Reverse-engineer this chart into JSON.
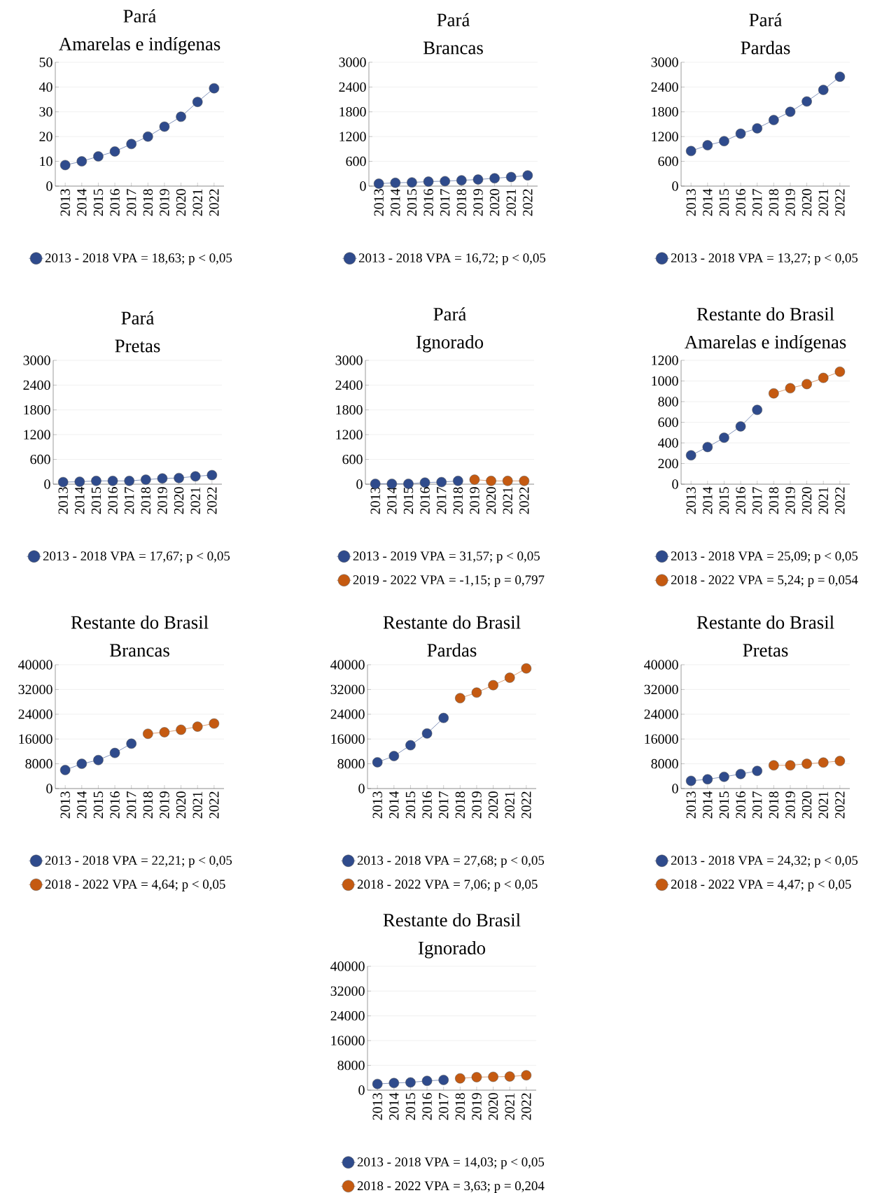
{
  "chart_data": [
    {
      "type": "line",
      "title": "Pará",
      "subtitle": "Amarelas e indígenas",
      "categories": [
        "2013",
        "2014",
        "2015",
        "2016",
        "2017",
        "2018",
        "2019",
        "2020",
        "2021",
        "2022"
      ],
      "ylim": [
        0,
        50
      ],
      "yticks": [
        0,
        10,
        20,
        30,
        40,
        50
      ],
      "grid": "y",
      "legend": "bottom",
      "marker": "circle",
      "series": [
        {
          "name": "2013 - 2018 VPA = 18,63; p < 0,05",
          "color": "#2f4b8c",
          "values": [
            8.5,
            10,
            12,
            14,
            17,
            20,
            24,
            28,
            34,
            39.5
          ]
        }
      ]
    },
    {
      "type": "line",
      "title": "Pará",
      "subtitle": "Brancas",
      "categories": [
        "2013",
        "2014",
        "2015",
        "2016",
        "2017",
        "2018",
        "2019",
        "2020",
        "2021",
        "2022"
      ],
      "ylim": [
        0,
        3000
      ],
      "yticks": [
        0,
        600,
        1200,
        1800,
        2400,
        3000
      ],
      "grid": "y",
      "legend": "bottom",
      "marker": "circle",
      "series": [
        {
          "name": "2013 - 2018 VPA = 16,72; p < 0,05",
          "color": "#2f4b8c",
          "values": [
            60,
            80,
            90,
            110,
            120,
            140,
            160,
            190,
            220,
            260
          ]
        }
      ]
    },
    {
      "type": "line",
      "title": "Pará",
      "subtitle": "Pardas",
      "categories": [
        "2013",
        "2014",
        "2015",
        "2016",
        "2017",
        "2018",
        "2019",
        "2020",
        "2021",
        "2022"
      ],
      "ylim": [
        0,
        3000
      ],
      "yticks": [
        0,
        600,
        1200,
        1800,
        2400,
        3000
      ],
      "grid": "y",
      "legend": "bottom",
      "marker": "circle",
      "series": [
        {
          "name": "2013 - 2018 VPA = 13,27; p < 0,05",
          "color": "#2f4b8c",
          "values": [
            850,
            990,
            1090,
            1270,
            1400,
            1600,
            1800,
            2050,
            2330,
            2650
          ]
        }
      ]
    },
    {
      "type": "line",
      "title": "Pará",
      "subtitle": "Pretas",
      "categories": [
        "2013",
        "2014",
        "2015",
        "2016",
        "2017",
        "2018",
        "2019",
        "2020",
        "2021",
        "2022"
      ],
      "ylim": [
        0,
        3000
      ],
      "yticks": [
        0,
        600,
        1200,
        1800,
        2400,
        3000
      ],
      "grid": "y",
      "legend": "bottom",
      "marker": "circle",
      "series": [
        {
          "name": "2013 - 2018 VPA = 17,67; p < 0,05",
          "color": "#2f4b8c",
          "values": [
            50,
            60,
            80,
            80,
            80,
            110,
            140,
            150,
            190,
            220
          ]
        }
      ]
    },
    {
      "type": "line",
      "title": "Pará",
      "subtitle": "Ignorado",
      "categories": [
        "2013",
        "2014",
        "2015",
        "2016",
        "2017",
        "2018",
        "2019",
        "2020",
        "2021",
        "2022"
      ],
      "ylim": [
        0,
        3000
      ],
      "yticks": [
        0,
        600,
        1200,
        1800,
        2400,
        3000
      ],
      "grid": "y",
      "legend": "bottom",
      "marker": "circle",
      "series": [
        {
          "name": "2013 - 2019 VPA = 31,57; p < 0,05",
          "color": "#2f4b8c",
          "values": [
            10,
            10,
            10,
            40,
            50,
            80,
            null,
            null,
            null,
            null
          ]
        },
        {
          "name": "2019 - 2022 VPA = -1,15; p = 0,797",
          "color": "#c55a11",
          "values": [
            null,
            null,
            null,
            null,
            null,
            null,
            110,
            80,
            80,
            80
          ]
        }
      ]
    },
    {
      "type": "line",
      "title": "Restante do Brasil",
      "subtitle": "Amarelas e indígenas",
      "categories": [
        "2013",
        "2014",
        "2015",
        "2016",
        "2017",
        "2018",
        "2019",
        "2020",
        "2021",
        "2022"
      ],
      "ylim": [
        0,
        1200
      ],
      "yticks": [
        0,
        200,
        400,
        600,
        800,
        1000,
        1200
      ],
      "grid": "y",
      "legend": "bottom",
      "marker": "circle",
      "series": [
        {
          "name": "2013 - 2018 VPA = 25,09; p < 0,05",
          "color": "#2f4b8c",
          "values": [
            280,
            360,
            450,
            560,
            720,
            null,
            null,
            null,
            null,
            null
          ]
        },
        {
          "name": "2018 - 2022 VPA = 5,24; p = 0,054",
          "color": "#c55a11",
          "values": [
            null,
            null,
            null,
            null,
            null,
            880,
            930,
            970,
            1030,
            1090
          ]
        }
      ]
    },
    {
      "type": "line",
      "title": "Restante do Brasil",
      "subtitle": "Brancas",
      "categories": [
        "2013",
        "2014",
        "2015",
        "2016",
        "2017",
        "2018",
        "2019",
        "2020",
        "2021",
        "2022"
      ],
      "ylim": [
        0,
        40000
      ],
      "yticks": [
        0,
        8000,
        16000,
        24000,
        32000,
        40000
      ],
      "grid": "y",
      "legend": "bottom",
      "marker": "circle",
      "series": [
        {
          "name": "2013 - 2018 VPA = 22,21; p < 0,05",
          "color": "#2f4b8c",
          "values": [
            6000,
            8000,
            9200,
            11500,
            14500,
            null,
            null,
            null,
            null,
            null
          ]
        },
        {
          "name": "2018 - 2022 VPA = 4,64; p < 0,05",
          "color": "#c55a11",
          "values": [
            null,
            null,
            null,
            null,
            null,
            17700,
            18200,
            19000,
            20000,
            21000
          ]
        }
      ]
    },
    {
      "type": "line",
      "title": "Restante do Brasil",
      "subtitle": "Pardas",
      "categories": [
        "2013",
        "2014",
        "2015",
        "2016",
        "2017",
        "2018",
        "2019",
        "2020",
        "2021",
        "2022"
      ],
      "ylim": [
        0,
        40000
      ],
      "yticks": [
        0,
        8000,
        16000,
        24000,
        32000,
        40000
      ],
      "grid": "y",
      "legend": "bottom",
      "marker": "circle",
      "series": [
        {
          "name": "2013 - 2018 VPA = 27,68; p < 0,05",
          "color": "#2f4b8c",
          "values": [
            8500,
            10500,
            14000,
            17800,
            22800,
            null,
            null,
            null,
            null,
            null
          ]
        },
        {
          "name": "2018 - 2022 VPA = 7,06; p < 0,05",
          "color": "#c55a11",
          "values": [
            null,
            null,
            null,
            null,
            null,
            29200,
            31000,
            33400,
            35800,
            38800
          ]
        }
      ]
    },
    {
      "type": "line",
      "title": "Restante do Brasil",
      "subtitle": "Pretas",
      "categories": [
        "2013",
        "2014",
        "2015",
        "2016",
        "2017",
        "2018",
        "2019",
        "2020",
        "2021",
        "2022"
      ],
      "ylim": [
        0,
        40000
      ],
      "yticks": [
        0,
        8000,
        16000,
        24000,
        32000,
        40000
      ],
      "grid": "y",
      "legend": "bottom",
      "marker": "circle",
      "series": [
        {
          "name": "2013 - 2018 VPA = 24,32; p < 0,05",
          "color": "#2f4b8c",
          "values": [
            2500,
            3000,
            3800,
            4700,
            5700,
            null,
            null,
            null,
            null,
            null
          ]
        },
        {
          "name": "2018 - 2022 VPA = 4,47; p < 0,05",
          "color": "#c55a11",
          "values": [
            null,
            null,
            null,
            null,
            null,
            7500,
            7500,
            8000,
            8400,
            8900
          ]
        }
      ]
    },
    {
      "type": "line",
      "title": "Restante do Brasil",
      "subtitle": "Ignorado",
      "categories": [
        "2013",
        "2014",
        "2015",
        "2016",
        "2017",
        "2018",
        "2019",
        "2020",
        "2021",
        "2022"
      ],
      "ylim": [
        0,
        40000
      ],
      "yticks": [
        0,
        8000,
        16000,
        24000,
        32000,
        40000
      ],
      "grid": "y",
      "legend": "bottom",
      "marker": "circle",
      "series": [
        {
          "name": "2013 - 2018 VPA = 14,03; p < 0,05",
          "color": "#2f4b8c",
          "values": [
            2000,
            2300,
            2500,
            3000,
            3300,
            null,
            null,
            null,
            null,
            null
          ]
        },
        {
          "name": "2018 - 2022 VPA = 3,63; p = 0,204",
          "color": "#c55a11",
          "values": [
            null,
            null,
            null,
            null,
            null,
            3800,
            4200,
            4300,
            4400,
            4800
          ]
        }
      ]
    }
  ]
}
